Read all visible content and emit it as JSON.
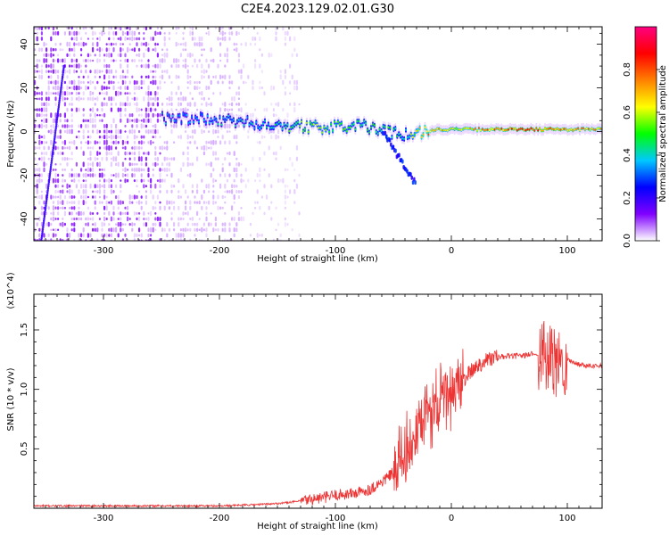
{
  "figure": {
    "title": "C2E4.2023.129.02.01.G30"
  },
  "chart_data": [
    {
      "type": "heatmap",
      "xlabel": "Height of straight line (km)",
      "ylabel": "Frequency (Hz)",
      "xlim": [
        -360,
        130
      ],
      "ylim": [
        -50,
        48
      ],
      "xticks": [
        -300,
        -200,
        -100,
        0,
        100
      ],
      "yticks": [
        -40,
        -20,
        0,
        20,
        40
      ],
      "colorbar": {
        "label": "Normalized spectral amplitude",
        "range": [
          0,
          1
        ],
        "ticks": [
          0.0,
          0.2,
          0.4,
          0.6,
          0.8
        ],
        "tick_labels": [
          "0.0",
          "0.2",
          "0.4",
          "0.6",
          "0.8"
        ],
        "colors": [
          "#ffffff",
          "#8000ff",
          "#0000ff",
          "#00c8ff",
          "#00ff00",
          "#ffff00",
          "#ff8000",
          "#ff0000",
          "#ff0080"
        ]
      },
      "ridge": [
        {
          "x": -250,
          "freq": 6,
          "amp": 0.35
        },
        {
          "x": -225,
          "freq": 6,
          "amp": 0.35
        },
        {
          "x": -200,
          "freq": 5,
          "amp": 0.4
        },
        {
          "x": -175,
          "freq": 4,
          "amp": 0.4
        },
        {
          "x": -150,
          "freq": 3,
          "amp": 0.45
        },
        {
          "x": -125,
          "freq": 2,
          "amp": 0.55
        },
        {
          "x": -100,
          "freq": 2,
          "amp": 0.55
        },
        {
          "x": -80,
          "freq": 3,
          "amp": 0.5
        },
        {
          "x": -60,
          "freq": 0,
          "amp": 0.5
        },
        {
          "x": -40,
          "freq": -1,
          "amp": 0.45
        },
        {
          "x": -25,
          "freq": 0,
          "amp": 0.75
        },
        {
          "x": -10,
          "freq": 1,
          "amp": 0.7
        },
        {
          "x": 0,
          "freq": 1,
          "amp": 0.6
        },
        {
          "x": 25,
          "freq": 1,
          "amp": 0.75
        },
        {
          "x": 50,
          "freq": 1,
          "amp": 0.8
        },
        {
          "x": 75,
          "freq": 1,
          "amp": 0.85
        },
        {
          "x": 100,
          "freq": 1,
          "amp": 0.75
        },
        {
          "x": 130,
          "freq": 1,
          "amp": 0.7
        }
      ]
    },
    {
      "type": "line",
      "xlabel": "Height of straight line (km)",
      "ylabel": "SNR (10 * v/v)",
      "y_multiplier": "(x10^4)",
      "xlim": [
        -360,
        130
      ],
      "ylim": [
        0,
        1.8
      ],
      "xticks": [
        -300,
        -200,
        -100,
        0,
        100
      ],
      "yticks": [
        0.5,
        1.0,
        1.5
      ],
      "ytick_labels": [
        "0.5",
        "1.0",
        "1.5"
      ],
      "color": "#ee3333",
      "series": [
        {
          "x": [
            -360,
            -300,
            -250,
            -200,
            -170,
            -150,
            -130,
            -110,
            -100,
            -90,
            -80,
            -70,
            -60,
            -50,
            -40,
            -30,
            -25,
            -20,
            -15,
            -10,
            -5,
            0,
            10,
            20,
            30,
            40,
            50,
            60,
            70,
            80,
            90,
            100,
            110,
            120,
            130
          ],
          "y": [
            0.02,
            0.02,
            0.02,
            0.02,
            0.03,
            0.04,
            0.06,
            0.09,
            0.11,
            0.12,
            0.13,
            0.16,
            0.22,
            0.3,
            0.45,
            0.6,
            0.7,
            0.8,
            0.85,
            0.88,
            0.92,
            0.98,
            1.08,
            1.18,
            1.25,
            1.27,
            1.28,
            1.28,
            1.3,
            1.28,
            1.2,
            1.25,
            1.21,
            1.2,
            1.2
          ]
        }
      ]
    }
  ]
}
